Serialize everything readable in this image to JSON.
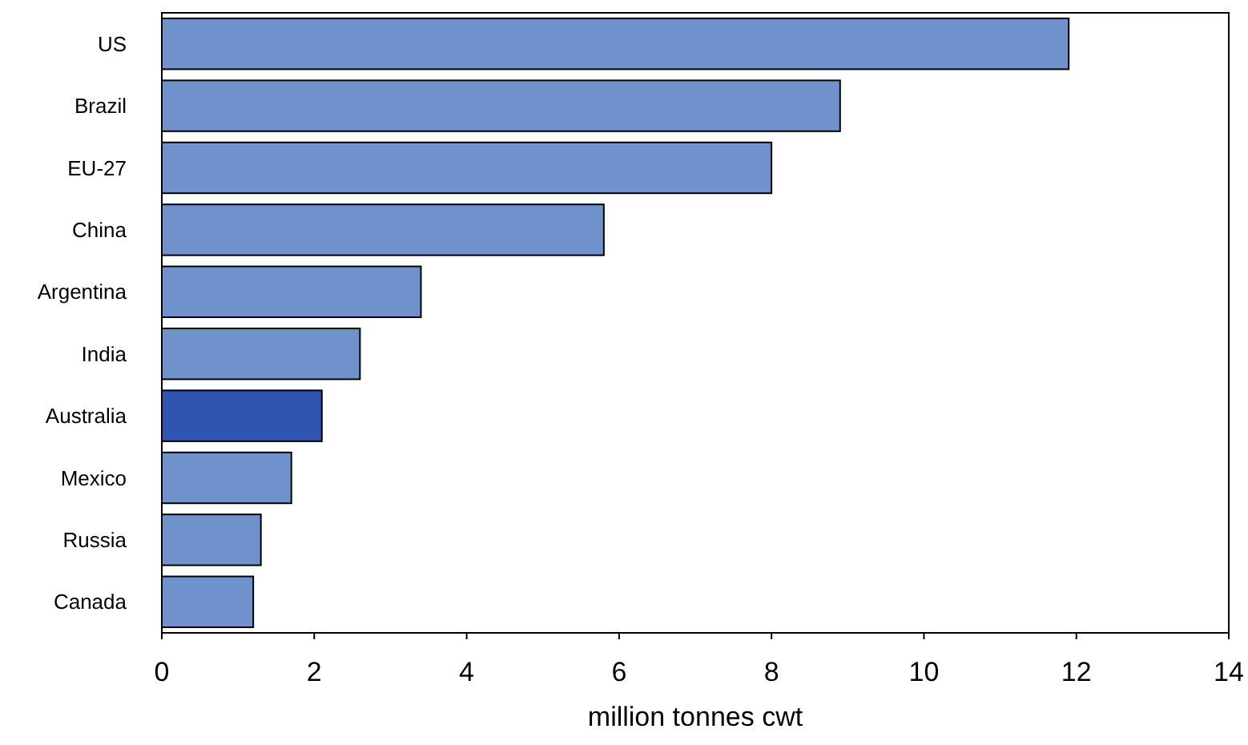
{
  "chart_data": {
    "type": "bar",
    "orientation": "horizontal",
    "xlabel": "million tonnes cwt",
    "categories": [
      "US",
      "Brazil",
      "EU-27",
      "China",
      "Argentina",
      "India",
      "Australia",
      "Mexico",
      "Russia",
      "Canada"
    ],
    "values": [
      11.9,
      8.9,
      8.0,
      5.8,
      3.4,
      2.6,
      2.1,
      1.7,
      1.3,
      1.2
    ],
    "colors": [
      "#7092cc",
      "#7092cc",
      "#7092cc",
      "#7092cc",
      "#7092cc",
      "#7092cc",
      "#2f55b0",
      "#7092cc",
      "#7092cc",
      "#7092cc"
    ],
    "xlim": [
      0,
      14
    ],
    "xticks": [
      0,
      2,
      4,
      6,
      8,
      10,
      12,
      14
    ],
    "grid": false
  }
}
